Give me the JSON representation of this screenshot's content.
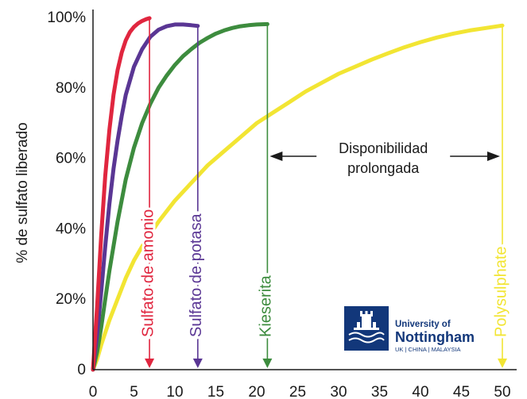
{
  "chart_data": {
    "type": "line",
    "title": "",
    "xlabel": "",
    "ylabel": "% de sulfato liberado",
    "xlim": [
      0,
      50
    ],
    "ylim": [
      0,
      100
    ],
    "x_ticks": [
      "0",
      "5",
      "10",
      "15",
      "20",
      "25",
      "30",
      "35",
      "40",
      "45",
      "50"
    ],
    "y_ticks": [
      "0",
      "20%",
      "40%",
      "60%",
      "80%",
      "100%"
    ],
    "grid": false,
    "series": [
      {
        "name": "Sulfato de amonio",
        "color": "#e0263f",
        "x": [
          0,
          0.5,
          1,
          1.5,
          2,
          2.5,
          3,
          3.5,
          4,
          4.5,
          5,
          5.5,
          6,
          6.5,
          6.9
        ],
        "y": [
          0,
          18,
          38,
          55,
          68,
          78,
          85,
          90,
          93.5,
          95.8,
          97.3,
          98.3,
          99,
          99.5,
          99.8
        ]
      },
      {
        "name": "Sulfato de potasa",
        "color": "#5a3694",
        "x": [
          0,
          0.5,
          1,
          1.5,
          2,
          2.5,
          3,
          3.5,
          4,
          5,
          6,
          7,
          8,
          9,
          10,
          11,
          12,
          12.8
        ],
        "y": [
          0,
          10,
          22,
          35,
          47,
          57,
          65,
          72,
          78,
          86,
          91,
          94.5,
          96.5,
          97.5,
          98,
          98,
          97.8,
          97.6
        ]
      },
      {
        "name": "Kieserita",
        "color": "#3d8c3e",
        "x": [
          0,
          0.5,
          1,
          1.5,
          2,
          3,
          4,
          5,
          6,
          7,
          8,
          9,
          10,
          11,
          12,
          13,
          14,
          15,
          16,
          17,
          18,
          19,
          20,
          21.3
        ],
        "y": [
          0,
          5,
          12,
          20,
          28,
          42,
          54,
          63,
          70,
          75.5,
          80,
          83.5,
          86.5,
          89,
          91,
          92.8,
          94.2,
          95.4,
          96.3,
          97,
          97.5,
          97.8,
          98,
          98.1
        ]
      },
      {
        "name": "Polysulphate",
        "color": "#f2e533",
        "x": [
          0,
          0.5,
          1,
          2,
          3,
          4,
          5,
          6,
          8,
          10,
          12,
          14,
          16,
          18,
          20,
          22,
          24,
          26,
          28,
          30,
          32,
          34,
          36,
          38,
          40,
          42,
          44,
          46,
          48,
          50
        ],
        "y": [
          0,
          3,
          7,
          14,
          20,
          26,
          31,
          35,
          42,
          48,
          53,
          58,
          62,
          66,
          70,
          73,
          76,
          79,
          81.5,
          84,
          86,
          88,
          89.8,
          91.5,
          93,
          94.3,
          95.4,
          96.3,
          97,
          97.7
        ]
      }
    ],
    "markers": [
      {
        "label": "Sulfato de amonio",
        "x": 6.9,
        "color": "#e0263f",
        "top": 99.8
      },
      {
        "label": "Sulfato de potasa",
        "x": 12.8,
        "color": "#5a3694",
        "top": 97.6
      },
      {
        "label": "Kieserita",
        "x": 21.3,
        "color": "#3d8c3e",
        "top": 98.1
      },
      {
        "label": "Polysulphate",
        "x": 50,
        "color": "#f2e533",
        "top": 97.7
      }
    ],
    "annotation": {
      "line1": "Disponibilidad",
      "line2": "prolongada",
      "from_x": 21.3,
      "to_x": 50,
      "y": 59
    }
  },
  "logo": {
    "line1": "University of",
    "line2": "Nottingham",
    "line3": "UK | CHINA | MALAYSIA",
    "color": "#12377a"
  }
}
